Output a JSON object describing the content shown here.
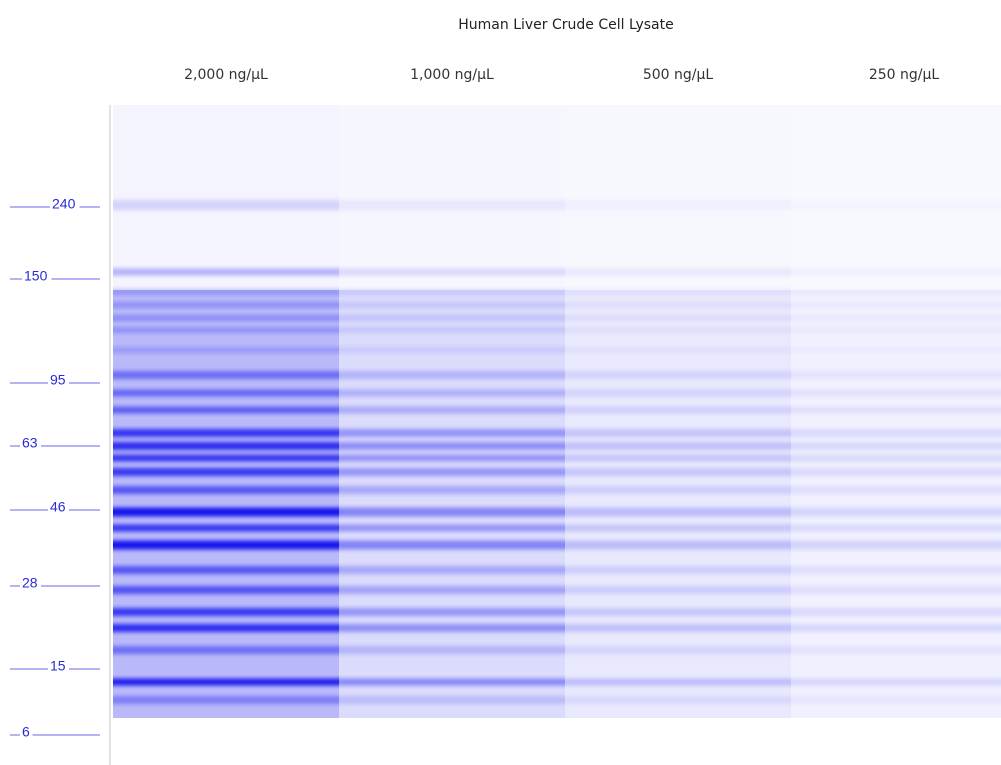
{
  "title": "Human Liver Crude Cell Lysate",
  "lanes": [
    "2,000 ng/µL",
    "1,000 ng/µL",
    "500 ng/µL",
    "250 ng/µL"
  ],
  "ladder": [
    "240",
    "150",
    "95",
    "63",
    "46",
    "28",
    "15",
    "6"
  ]
}
